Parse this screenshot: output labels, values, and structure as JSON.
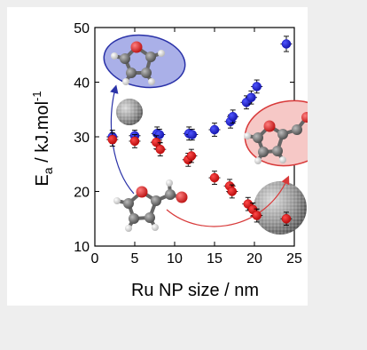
{
  "chart_data": {
    "type": "scatter",
    "xlabel": "Ru NP size / nm",
    "ylabel": {
      "main": "E",
      "sub": "a",
      "unit": " / kJ.mol",
      "sup": "-1"
    },
    "xlim": [
      0,
      25
    ],
    "ylim": [
      10,
      50
    ],
    "xticks": [
      0,
      5,
      10,
      15,
      20,
      25
    ],
    "yticks": [
      10,
      20,
      30,
      40,
      50
    ],
    "grid": false,
    "series": [
      {
        "color": "#1010c8",
        "points": [
          {
            "x": 2.2,
            "y": 30.0,
            "err": 1.2
          },
          {
            "x": 5.0,
            "y": 30.2,
            "err": 1.0
          },
          {
            "x": 7.8,
            "y": 30.6,
            "err": 1.2
          },
          {
            "x": 8.1,
            "y": 30.4,
            "err": 1.0
          },
          {
            "x": 11.8,
            "y": 30.6,
            "err": 1.2
          },
          {
            "x": 12.2,
            "y": 30.4,
            "err": 1.0
          },
          {
            "x": 15.0,
            "y": 31.3,
            "err": 1.2
          },
          {
            "x": 17.0,
            "y": 32.8,
            "err": 1.2
          },
          {
            "x": 17.3,
            "y": 33.7,
            "err": 1.2
          },
          {
            "x": 19.0,
            "y": 36.3,
            "err": 1.2
          },
          {
            "x": 19.6,
            "y": 37.2,
            "err": 1.2
          },
          {
            "x": 20.3,
            "y": 39.2,
            "err": 1.2
          },
          {
            "x": 24.0,
            "y": 47.0,
            "err": 1.4
          }
        ]
      },
      {
        "color": "#d00000",
        "points": [
          {
            "x": 2.2,
            "y": 29.5,
            "err": 1.2
          },
          {
            "x": 5.0,
            "y": 29.2,
            "err": 1.2
          },
          {
            "x": 7.7,
            "y": 29.0,
            "err": 1.2
          },
          {
            "x": 8.2,
            "y": 27.7,
            "err": 1.2
          },
          {
            "x": 11.7,
            "y": 25.8,
            "err": 1.2
          },
          {
            "x": 12.1,
            "y": 26.5,
            "err": 1.2
          },
          {
            "x": 15.0,
            "y": 22.5,
            "err": 1.2
          },
          {
            "x": 16.9,
            "y": 21.0,
            "err": 1.2
          },
          {
            "x": 17.2,
            "y": 20.0,
            "err": 1.2
          },
          {
            "x": 19.2,
            "y": 17.7,
            "err": 1.2
          },
          {
            "x": 19.8,
            "y": 16.7,
            "err": 1.2
          },
          {
            "x": 20.3,
            "y": 15.6,
            "err": 1.2
          },
          {
            "x": 24.0,
            "y": 15.0,
            "err": 1.2
          }
        ]
      }
    ]
  },
  "icons": {
    "furfural": "furfural-molecule-icon",
    "furan": "furan-molecule-icon",
    "furfuryl_alcohol": "furfuryl-alcohol-molecule-icon",
    "small_cluster": "small-ru-nanoparticle-icon",
    "large_cluster": "large-ru-nanoparticle-icon"
  },
  "colors": {
    "blue_bubble_fill": "#aab0e8",
    "blue_bubble_stroke": "#2a32a8",
    "red_bubble_fill": "#f6c8c6",
    "red_bubble_stroke": "#d83a3a"
  }
}
